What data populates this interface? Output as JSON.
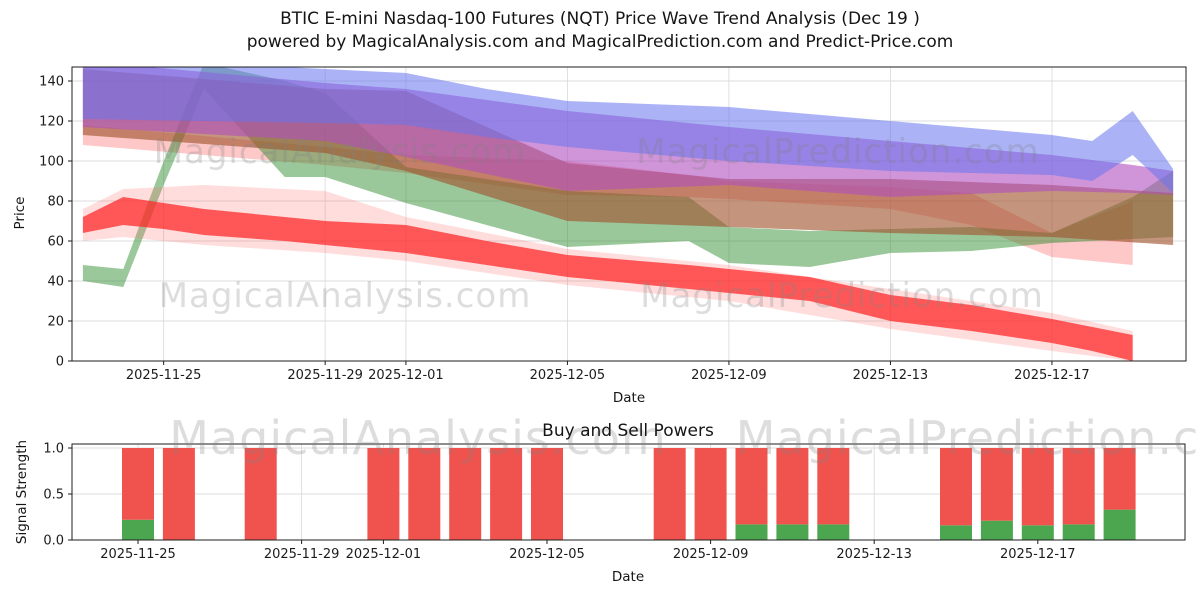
{
  "header": {
    "title_line1": "BTIC E-mini Nasdaq-100 Futures (NQT) Price Wave Trend Analysis (Dec 19 )",
    "title_line2": "powered by MagicalAnalysis.com and MagicalPrediction.com and Predict-Price.com"
  },
  "watermark": {
    "analysis": "MagicalAnalysis.com",
    "prediction": "MagicalPrediction.com"
  },
  "chart_data": [
    {
      "type": "area",
      "name": "price-wave-trend",
      "title": "",
      "xlabel": "Date",
      "ylabel": "Price",
      "ylim": [
        0,
        147
      ],
      "yticks": [
        0,
        20,
        40,
        60,
        80,
        100,
        120,
        140
      ],
      "xticks": [
        "2025-11-25",
        "2025-11-29",
        "2025-12-01",
        "2025-12-05",
        "2025-12-09",
        "2025-12-13",
        "2025-12-17"
      ],
      "grid": true,
      "legend": "none",
      "bands": [
        {
          "name": "salmon-wave-band",
          "color": "#ff5555",
          "opacity": 0.32,
          "points": [
            [
              "2025-11-23",
              108,
              118
            ],
            [
              "2025-11-29",
              98,
              107
            ],
            [
              "2025-12-01",
              94,
              103
            ],
            [
              "2025-12-05",
              83,
              100
            ],
            [
              "2025-12-08",
              82,
              93
            ],
            [
              "2025-12-09",
              81,
              90
            ],
            [
              "2025-12-13",
              76,
              87
            ],
            [
              "2025-12-15",
              68,
              84
            ],
            [
              "2025-12-17",
              52,
              64
            ],
            [
              "2025-12-18",
              50,
              72
            ],
            [
              "2025-12-19",
              48,
              80
            ]
          ]
        },
        {
          "name": "green-wave-band",
          "color": "#2e8b2e",
          "opacity": 0.48,
          "points": [
            [
              "2025-11-23",
              40,
              48
            ],
            [
              "2025-11-24",
              37,
              46
            ],
            [
              "2025-11-25",
              88,
              100
            ],
            [
              "2025-11-26",
              136,
              149
            ],
            [
              "2025-11-28",
              92,
              140
            ],
            [
              "2025-11-29",
              92,
              134
            ],
            [
              "2025-12-01",
              79,
              97
            ],
            [
              "2025-12-05",
              57,
              85
            ],
            [
              "2025-12-08",
              60,
              82
            ],
            [
              "2025-12-09",
              49,
              67
            ],
            [
              "2025-12-11",
              47,
              65
            ],
            [
              "2025-12-13",
              54,
              66
            ],
            [
              "2025-12-15",
              55,
              67
            ],
            [
              "2025-12-17",
              59,
              64
            ],
            [
              "2025-12-19",
              61,
              82
            ],
            [
              "2025-12-20",
              62,
              95
            ]
          ]
        },
        {
          "name": "sienna-wave-band",
          "color": "#a0522d",
          "opacity": 0.62,
          "points": [
            [
              "2025-11-23",
              113,
              146
            ],
            [
              "2025-11-29",
              104,
              136
            ],
            [
              "2025-12-01",
              95,
              135
            ],
            [
              "2025-12-05",
              70,
              99
            ],
            [
              "2025-12-09",
              67,
              91
            ],
            [
              "2025-12-13",
              64,
              91
            ],
            [
              "2025-12-17",
              62,
              88
            ],
            [
              "2025-12-20",
              58,
              84
            ]
          ]
        },
        {
          "name": "magenta-wave-band",
          "color": "#b04fc0",
          "opacity": 0.6,
          "points": [
            [
              "2025-11-23",
              117,
              150
            ],
            [
              "2025-11-29",
              110,
              139
            ],
            [
              "2025-12-01",
              102,
              136
            ],
            [
              "2025-12-05",
              85,
              125
            ],
            [
              "2025-12-09",
              88,
              117
            ],
            [
              "2025-12-13",
              82,
              110
            ],
            [
              "2025-12-17",
              85,
              103
            ],
            [
              "2025-12-19",
              84,
              98
            ],
            [
              "2025-12-20",
              83,
              95
            ]
          ]
        },
        {
          "name": "blue-wave-band",
          "color": "#6674ee",
          "opacity": 0.55,
          "points": [
            [
              "2025-11-23",
              121,
              152
            ],
            [
              "2025-11-29",
              119,
              146
            ],
            [
              "2025-12-01",
              118,
              144
            ],
            [
              "2025-12-03",
              112,
              136
            ],
            [
              "2025-12-05",
              107,
              130
            ],
            [
              "2025-12-09",
              100,
              127
            ],
            [
              "2025-12-13",
              95,
              120
            ],
            [
              "2025-12-17",
              93,
              113
            ],
            [
              "2025-12-18",
              90,
              110
            ],
            [
              "2025-12-19",
              103,
              125
            ],
            [
              "2025-12-20",
              84,
              96
            ]
          ]
        },
        {
          "name": "pink-uncertainty-band",
          "color": "#ff6666",
          "opacity": 0.22,
          "points": [
            [
              "2025-11-23",
              60,
              76
            ],
            [
              "2025-11-24",
              62,
              86
            ],
            [
              "2025-11-26",
              58,
              88
            ],
            [
              "2025-11-29",
              54,
              85
            ],
            [
              "2025-12-01",
              50,
              72
            ],
            [
              "2025-12-05",
              38,
              56
            ],
            [
              "2025-12-09",
              30,
              48
            ],
            [
              "2025-12-13",
              16,
              36
            ],
            [
              "2025-12-17",
              5,
              24
            ],
            [
              "2025-12-19",
              0,
              15
            ]
          ]
        },
        {
          "name": "red-trend-band",
          "color": "#ff2222",
          "opacity": 0.72,
          "points": [
            [
              "2025-11-23",
              64,
              72
            ],
            [
              "2025-11-24",
              68,
              82
            ],
            [
              "2025-11-25",
              66,
              79
            ],
            [
              "2025-11-26",
              63,
              76
            ],
            [
              "2025-11-28",
              60,
              72
            ],
            [
              "2025-11-29",
              58,
              70
            ],
            [
              "2025-12-01",
              54,
              68
            ],
            [
              "2025-12-03",
              48,
              60
            ],
            [
              "2025-12-05",
              42,
              53
            ],
            [
              "2025-12-08",
              36,
              48
            ],
            [
              "2025-12-09",
              34,
              46
            ],
            [
              "2025-12-11",
              30,
              42
            ],
            [
              "2025-12-13",
              20,
              33
            ],
            [
              "2025-12-15",
              15,
              28
            ],
            [
              "2025-12-17",
              9,
              21
            ],
            [
              "2025-12-18",
              5,
              17
            ],
            [
              "2025-12-19",
              0,
              13
            ]
          ]
        }
      ]
    },
    {
      "type": "bar",
      "name": "buy-sell-powers",
      "title": "Buy and Sell Powers",
      "xlabel": "Date",
      "ylabel": "Signal Strength",
      "ylim": [
        0,
        1.045
      ],
      "yticks": [
        "0.0",
        "0.5",
        "1.0"
      ],
      "xticks": [
        "2025-11-25",
        "2025-11-29",
        "2025-12-01",
        "2025-12-05",
        "2025-12-09",
        "2025-12-13",
        "2025-12-17"
      ],
      "grid": true,
      "legend": "none",
      "series": [
        {
          "name": "buy_power",
          "color": "#4ca64f"
        },
        {
          "name": "sell_power",
          "color": "#f0534e"
        }
      ],
      "bars": [
        {
          "date": "2025-11-25",
          "buy": 0.22,
          "sell": 0.78
        },
        {
          "date": "2025-11-26",
          "buy": 0,
          "sell": 1.0
        },
        {
          "date": "2025-11-28",
          "buy": 0,
          "sell": 1.0
        },
        {
          "date": "2025-12-01",
          "buy": 0,
          "sell": 1.0
        },
        {
          "date": "2025-12-02",
          "buy": 0,
          "sell": 1.0
        },
        {
          "date": "2025-12-03",
          "buy": 0,
          "sell": 1.0
        },
        {
          "date": "2025-12-04",
          "buy": 0,
          "sell": 1.0
        },
        {
          "date": "2025-12-05",
          "buy": 0,
          "sell": 1.0
        },
        {
          "date": "2025-12-08",
          "buy": 0,
          "sell": 1.0
        },
        {
          "date": "2025-12-09",
          "buy": 0,
          "sell": 1.0
        },
        {
          "date": "2025-12-10",
          "buy": 0.17,
          "sell": 0.83
        },
        {
          "date": "2025-12-11",
          "buy": 0.17,
          "sell": 0.83
        },
        {
          "date": "2025-12-12",
          "buy": 0.17,
          "sell": 0.83
        },
        {
          "date": "2025-12-15",
          "buy": 0.16,
          "sell": 0.84
        },
        {
          "date": "2025-12-16",
          "buy": 0.21,
          "sell": 0.79
        },
        {
          "date": "2025-12-17",
          "buy": 0.16,
          "sell": 0.84
        },
        {
          "date": "2025-12-18",
          "buy": 0.17,
          "sell": 0.83
        },
        {
          "date": "2025-12-19",
          "buy": 0.33,
          "sell": 0.67
        }
      ]
    }
  ]
}
